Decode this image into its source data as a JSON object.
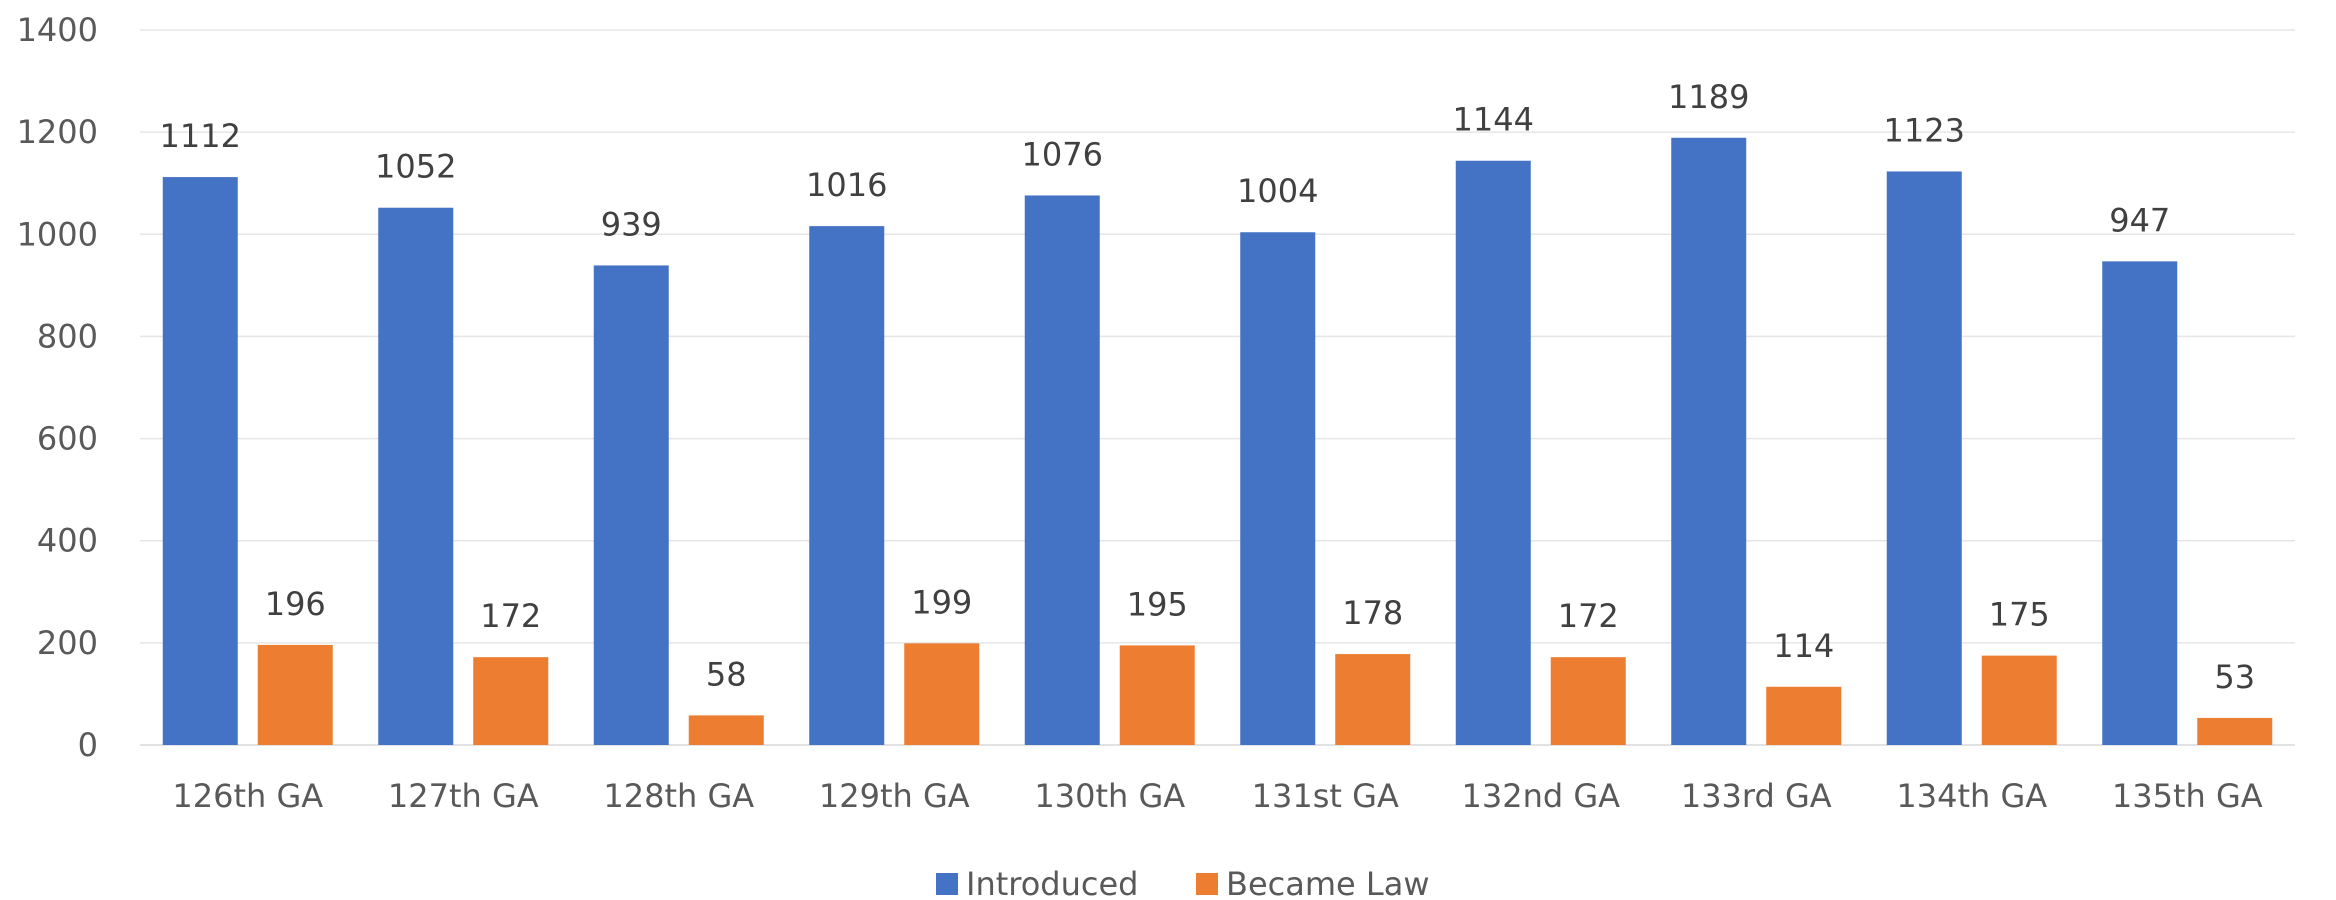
{
  "chart_data": {
    "type": "bar",
    "title": "",
    "xlabel": "",
    "ylabel": "",
    "categories": [
      "126th GA",
      "127th GA",
      "128th GA",
      "129th GA",
      "130th GA",
      "131st GA",
      "132nd GA",
      "133rd GA",
      "134th GA",
      "135th GA"
    ],
    "series": [
      {
        "name": "Introduced",
        "color": "#4472C4",
        "values": [
          1112,
          1052,
          939,
          1016,
          1076,
          1004,
          1144,
          1189,
          1123,
          947
        ]
      },
      {
        "name": "Became Law",
        "color": "#ED7D31",
        "values": [
          196,
          172,
          58,
          199,
          195,
          178,
          172,
          114,
          175,
          53
        ]
      }
    ],
    "ylim": [
      0,
      1400
    ],
    "yticks": [
      "0",
      "200",
      "400",
      "600",
      "800",
      "1000",
      "1200",
      "1400"
    ],
    "grid": true,
    "data_labels": true,
    "legend_position": "bottom"
  }
}
